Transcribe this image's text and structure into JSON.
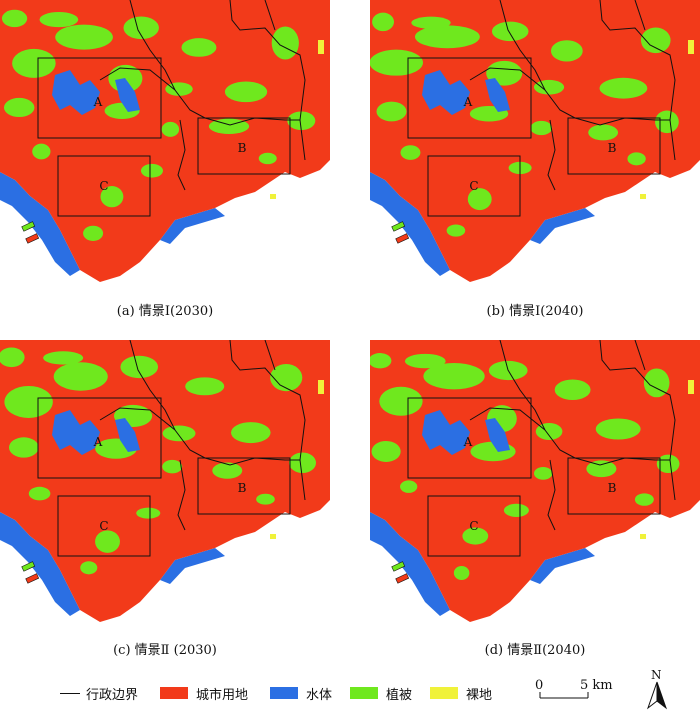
{
  "panels": [
    {
      "caption": "(a) 情景Ⅰ(2030)",
      "zones": [
        "A",
        "B",
        "C"
      ]
    },
    {
      "caption": "(b) 情景Ⅰ(2040)",
      "zones": [
        "A",
        "B",
        "C"
      ]
    },
    {
      "caption": "(c) 情景Ⅱ (2030)",
      "zones": [
        "A",
        "B",
        "C"
      ]
    },
    {
      "caption": "(d) 情景Ⅱ(2040)",
      "zones": [
        "A",
        "B",
        "C"
      ]
    }
  ],
  "legend": {
    "boundary": "行政边界",
    "items": [
      {
        "label": "城市用地",
        "color": "#f23a1a"
      },
      {
        "label": "水体",
        "color": "#2b6fe3"
      },
      {
        "label": "植被",
        "color": "#6fe81e"
      },
      {
        "label": "裸地",
        "color": "#f0f23a"
      }
    ]
  },
  "scale_bar": {
    "start": "0",
    "end": "5 km"
  },
  "north_label": "N"
}
